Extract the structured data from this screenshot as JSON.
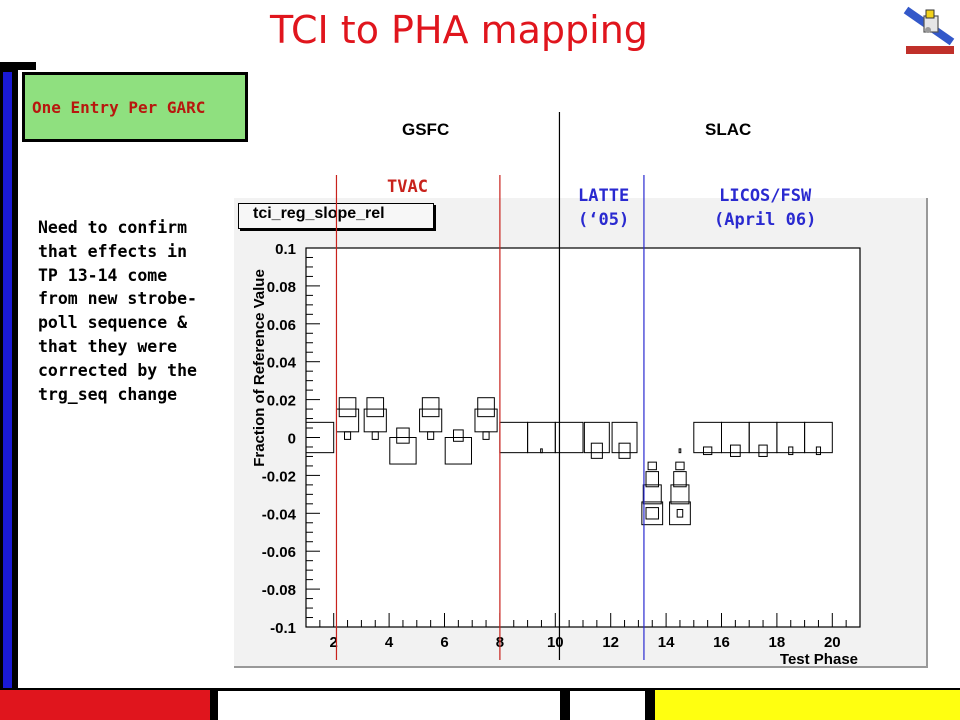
{
  "slide": {
    "title": "TCI to PHA mapping",
    "entry_box_text": "One Entry Per GARC",
    "note": "Need to confirm that effects in TP 13-14 come from new strobe-poll sequence & that they were corrected by the trg_seq change",
    "site_gsfc": "GSFC",
    "site_slac": "SLAC",
    "tvac_label": "TVAC",
    "latte_line1": "LATTE",
    "latte_line2": "(‘05)",
    "licos_line1": "LICOS/FSW",
    "licos_line2": "(April 06)",
    "colors": {
      "title": "#e0151d",
      "tvac": "#c8221c",
      "latte": "#2a2ad0",
      "entry_bg": "#8fe07f"
    }
  },
  "chart_data": {
    "type": "scatter",
    "title": "tci_reg_slope_rel",
    "xlabel": "Test Phase",
    "ylabel": "Fraction of Reference Value",
    "xlim": [
      1,
      21
    ],
    "ylim": [
      -0.1,
      0.1
    ],
    "x_ticks": [
      2,
      4,
      6,
      8,
      10,
      12,
      14,
      16,
      18,
      20
    ],
    "x_tick_labels": [
      "2",
      "4",
      "6",
      "8",
      "10",
      "12",
      "14",
      "16",
      "18",
      "20"
    ],
    "y_ticks": [
      0.1,
      0.08,
      0.06,
      0.04,
      0.02,
      0,
      -0.02,
      -0.04,
      -0.06,
      -0.08,
      -0.1
    ],
    "y_tick_labels": [
      "0.1",
      "0.08",
      "0.06",
      "0.04",
      "0.02",
      "0",
      "-0.02",
      "-0.04",
      "-0.06",
      "-0.08",
      "-0.1"
    ],
    "style": "box",
    "boxes": [
      {
        "x": 1.5,
        "y": 0.0,
        "w": 1.0,
        "h": 0.008
      },
      {
        "x": 2.5,
        "y": 0.016,
        "w": 0.6,
        "h": 0.005
      },
      {
        "x": 2.5,
        "y": 0.009,
        "w": 0.8,
        "h": 0.006
      },
      {
        "x": 2.5,
        "y": 0.001,
        "w": 0.22,
        "h": 0.002
      },
      {
        "x": 3.5,
        "y": 0.016,
        "w": 0.6,
        "h": 0.005
      },
      {
        "x": 3.5,
        "y": 0.009,
        "w": 0.8,
        "h": 0.006
      },
      {
        "x": 3.5,
        "y": 0.001,
        "w": 0.22,
        "h": 0.002
      },
      {
        "x": 4.5,
        "y": 0.001,
        "w": 0.45,
        "h": 0.004
      },
      {
        "x": 4.5,
        "y": -0.007,
        "w": 0.95,
        "h": 0.007
      },
      {
        "x": 5.5,
        "y": 0.016,
        "w": 0.6,
        "h": 0.005
      },
      {
        "x": 5.5,
        "y": 0.009,
        "w": 0.8,
        "h": 0.006
      },
      {
        "x": 5.5,
        "y": 0.001,
        "w": 0.22,
        "h": 0.002
      },
      {
        "x": 6.5,
        "y": 0.001,
        "w": 0.35,
        "h": 0.003
      },
      {
        "x": 6.5,
        "y": -0.007,
        "w": 0.95,
        "h": 0.007
      },
      {
        "x": 7.5,
        "y": 0.016,
        "w": 0.6,
        "h": 0.005
      },
      {
        "x": 7.5,
        "y": 0.009,
        "w": 0.8,
        "h": 0.006
      },
      {
        "x": 7.5,
        "y": 0.001,
        "w": 0.22,
        "h": 0.002
      },
      {
        "x": 8.5,
        "y": 0.0,
        "w": 1.0,
        "h": 0.008
      },
      {
        "x": 9.5,
        "y": 0.0,
        "w": 1.0,
        "h": 0.008
      },
      {
        "x": 9.5,
        "y": -0.007,
        "w": 0.06,
        "h": 0.001
      },
      {
        "x": 10.5,
        "y": 0.0,
        "w": 1.0,
        "h": 0.008
      },
      {
        "x": 11.5,
        "y": 0.0,
        "w": 0.9,
        "h": 0.008
      },
      {
        "x": 11.5,
        "y": -0.007,
        "w": 0.4,
        "h": 0.004
      },
      {
        "x": 12.5,
        "y": 0.0,
        "w": 0.9,
        "h": 0.008
      },
      {
        "x": 12.5,
        "y": -0.007,
        "w": 0.4,
        "h": 0.004
      },
      {
        "x": 13.5,
        "y": -0.015,
        "w": 0.3,
        "h": 0.002
      },
      {
        "x": 13.5,
        "y": -0.022,
        "w": 0.45,
        "h": 0.004
      },
      {
        "x": 13.5,
        "y": -0.03,
        "w": 0.65,
        "h": 0.005
      },
      {
        "x": 13.5,
        "y": -0.04,
        "w": 0.75,
        "h": 0.006
      },
      {
        "x": 13.5,
        "y": -0.04,
        "w": 0.45,
        "h": 0.003
      },
      {
        "x": 14.5,
        "y": -0.007,
        "w": 0.06,
        "h": 0.001
      },
      {
        "x": 14.5,
        "y": -0.015,
        "w": 0.3,
        "h": 0.002
      },
      {
        "x": 14.5,
        "y": -0.022,
        "w": 0.45,
        "h": 0.004
      },
      {
        "x": 14.5,
        "y": -0.03,
        "w": 0.65,
        "h": 0.005
      },
      {
        "x": 14.5,
        "y": -0.04,
        "w": 0.75,
        "h": 0.006
      },
      {
        "x": 14.5,
        "y": -0.04,
        "w": 0.2,
        "h": 0.002
      },
      {
        "x": 15.5,
        "y": 0.0,
        "w": 1.0,
        "h": 0.008
      },
      {
        "x": 15.5,
        "y": -0.007,
        "w": 0.3,
        "h": 0.002
      },
      {
        "x": 16.5,
        "y": 0.0,
        "w": 1.0,
        "h": 0.008
      },
      {
        "x": 16.5,
        "y": -0.007,
        "w": 0.35,
        "h": 0.003
      },
      {
        "x": 17.5,
        "y": 0.0,
        "w": 1.0,
        "h": 0.008
      },
      {
        "x": 17.5,
        "y": -0.007,
        "w": 0.3,
        "h": 0.003
      },
      {
        "x": 18.5,
        "y": 0.0,
        "w": 1.0,
        "h": 0.008
      },
      {
        "x": 18.5,
        "y": -0.007,
        "w": 0.15,
        "h": 0.002
      },
      {
        "x": 19.5,
        "y": 0.0,
        "w": 1.0,
        "h": 0.008
      },
      {
        "x": 19.5,
        "y": -0.007,
        "w": 0.15,
        "h": 0.002
      }
    ],
    "markers": [
      {
        "x": 2.1,
        "color": "#c8221c"
      },
      {
        "x": 8.0,
        "color": "#c8221c"
      },
      {
        "x": 10.15,
        "color": "#000000"
      },
      {
        "x": 13.2,
        "color": "#2a2ad0"
      }
    ],
    "grid": false
  }
}
